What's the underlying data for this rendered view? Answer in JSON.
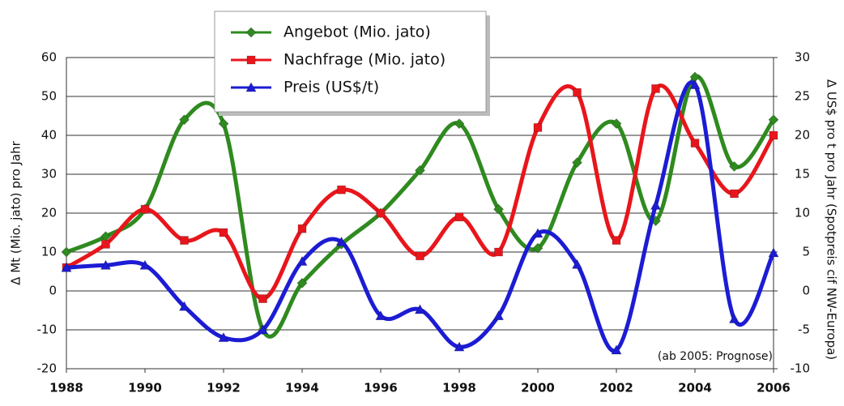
{
  "chart_data": {
    "type": "line",
    "x": [
      1988,
      1989,
      1990,
      1991,
      1992,
      1993,
      1994,
      1995,
      1996,
      1997,
      1998,
      1999,
      2000,
      2001,
      2002,
      2003,
      2004,
      2005,
      2006
    ],
    "xlim": [
      1988,
      2006
    ],
    "xticks": [
      1988,
      1990,
      1992,
      1994,
      1996,
      1998,
      2000,
      2002,
      2004,
      2006
    ],
    "ylim": [
      -20,
      60
    ],
    "yticks": [
      -20,
      -10,
      0,
      10,
      20,
      30,
      40,
      50,
      60
    ],
    "y2lim": [
      -10,
      30
    ],
    "y2ticks": [
      -10,
      -5,
      0,
      5,
      10,
      15,
      20,
      25,
      30
    ],
    "ylabel": "Δ Mt (Mio. jato) pro Jahr",
    "y2label": "Δ US$ pro t pro Jahr (Spotpreis cif NW-Europa)",
    "annotation": "(ab 2005: Prognose)",
    "grid": true,
    "legend": "top",
    "series": [
      {
        "name": "Angebot (Mio. jato)",
        "color": "#2f8a1f",
        "marker": "diamond",
        "values": [
          10,
          14,
          21,
          44,
          43,
          -10,
          2,
          12,
          20,
          31,
          43,
          21,
          11,
          33,
          43,
          18,
          55,
          32,
          44
        ]
      },
      {
        "name": "Nachfrage (Mio. jato)",
        "color": "#e8161c",
        "marker": "square",
        "values": [
          6,
          12,
          21,
          13,
          15,
          -2,
          16,
          26,
          20,
          9,
          19,
          10,
          42,
          51,
          13,
          52,
          38,
          25,
          40
        ]
      },
      {
        "name": "Preis (US$/t)",
        "color": "#1c1cd4",
        "marker": "triangle",
        "axis": "y2",
        "values": [
          3,
          3.3,
          3.3,
          -2,
          -6,
          -5,
          3.8,
          6.3,
          -3.2,
          -2.4,
          -7.2,
          -3.2,
          7.4,
          3.4,
          -7.6,
          11,
          26.5,
          -3.6,
          4.9
        ]
      }
    ]
  }
}
